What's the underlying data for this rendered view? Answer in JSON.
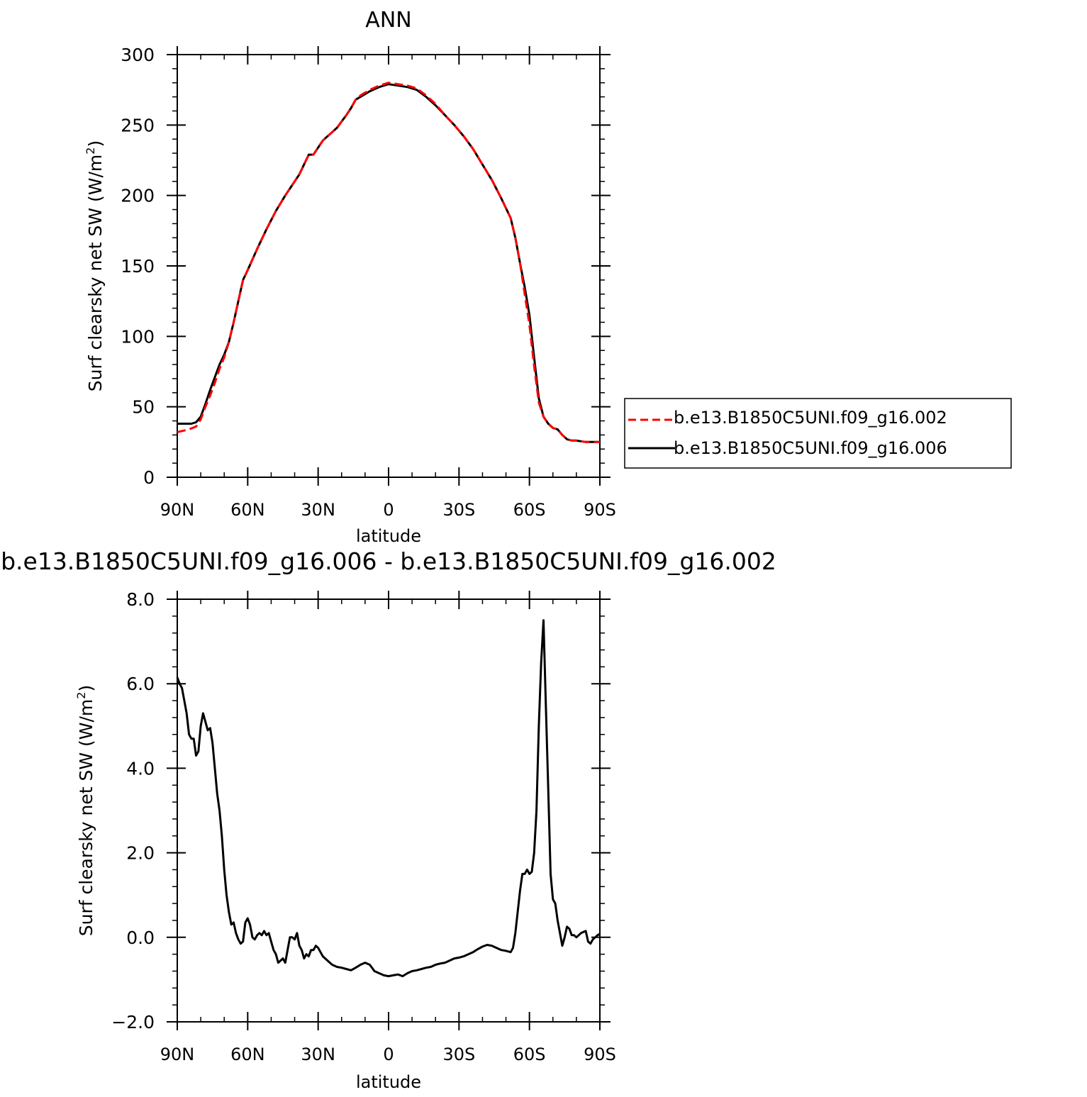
{
  "chart_data": [
    {
      "type": "line",
      "title": "ANN",
      "xlabel": "latitude",
      "ylabel_main": "Surf clearsky net SW (W/m",
      "ylabel_sup": "2",
      "ylabel_close": ")",
      "x_range": [
        90,
        -90
      ],
      "ylim": [
        0,
        300
      ],
      "x_ticks": [
        90,
        60,
        30,
        0,
        -30,
        -60,
        -90
      ],
      "x_tick_labels": [
        "90N",
        "60N",
        "30N",
        "0",
        "30S",
        "60S",
        "90S"
      ],
      "y_ticks": [
        0,
        50,
        100,
        150,
        200,
        250,
        300
      ],
      "y_tick_labels": [
        "0",
        "50",
        "100",
        "150",
        "200",
        "250",
        "300"
      ],
      "legend": "right",
      "series": [
        {
          "name": "b.e13.B1850C5UNI.f09_g16.002",
          "color": "#ff0000",
          "style": "dashed",
          "x": [
            90,
            85,
            82,
            80,
            78,
            76,
            74,
            72,
            70,
            68,
            66,
            64,
            62,
            60,
            56,
            52,
            48,
            44,
            40,
            38,
            36,
            34,
            32,
            30,
            28,
            26,
            22,
            18,
            16,
            14,
            12,
            8,
            4,
            0,
            -4,
            -8,
            -12,
            -16,
            -20,
            -24,
            -28,
            -32,
            -36,
            -40,
            -44,
            -48,
            -52,
            -54,
            -56,
            -58,
            -60,
            -62,
            -64,
            -66,
            -68,
            -70,
            -72,
            -74,
            -76,
            -78,
            -80,
            -84,
            -88,
            -90
          ],
          "values": [
            32,
            34,
            36,
            41,
            50,
            58,
            67,
            77,
            85,
            96,
            110,
            125,
            140,
            147,
            162,
            176,
            189,
            200,
            210,
            215,
            222,
            229,
            229,
            234,
            239,
            242,
            248,
            257,
            262,
            268,
            271,
            275,
            278,
            280,
            279,
            278,
            276,
            271,
            265,
            257,
            250,
            242,
            233,
            222,
            211,
            198,
            184,
            170,
            152,
            130,
            108,
            79,
            53,
            43,
            38,
            35,
            34,
            30,
            27,
            26,
            26,
            25,
            25,
            25
          ]
        },
        {
          "name": "b.e13.B1850C5UNI.f09_g16.006",
          "color": "#000000",
          "style": "solid",
          "x": [
            90,
            87,
            84,
            82,
            80,
            78,
            76,
            74,
            72,
            70,
            68,
            66,
            64,
            62,
            60,
            56,
            52,
            48,
            44,
            40,
            38,
            36,
            34,
            32,
            30,
            28,
            26,
            22,
            18,
            16,
            14,
            12,
            8,
            4,
            0,
            -4,
            -8,
            -12,
            -16,
            -20,
            -24,
            -28,
            -32,
            -36,
            -40,
            -44,
            -48,
            -52,
            -54,
            -56,
            -58,
            -60,
            -62,
            -64,
            -66,
            -68,
            -70,
            -72,
            -74,
            -76,
            -78,
            -80,
            -84,
            -88,
            -90
          ],
          "values": [
            38,
            38,
            38,
            39,
            43,
            52,
            62,
            71,
            80,
            87,
            96,
            110,
            125,
            140,
            147,
            162,
            176,
            189,
            200,
            210,
            215,
            222,
            229,
            229,
            234,
            239,
            242,
            248,
            257,
            262,
            268,
            270,
            274,
            277,
            279,
            278,
            277,
            275,
            270,
            264,
            257,
            250,
            242,
            233,
            222,
            211,
            198,
            184,
            170,
            152,
            135,
            115,
            85,
            56,
            43,
            38,
            35,
            34,
            30,
            27,
            26,
            26,
            25,
            25,
            25
          ]
        }
      ]
    },
    {
      "type": "line",
      "title": "b.e13.B1850C5UNI.f09_g16.006 - b.e13.B1850C5UNI.f09_g16.002",
      "xlabel": "latitude",
      "ylabel_main": "Surf clearsky net SW (W/m",
      "ylabel_sup": "2",
      "ylabel_close": ")",
      "x_range": [
        90,
        -90
      ],
      "ylim": [
        -2.0,
        8.0
      ],
      "x_ticks": [
        90,
        60,
        30,
        0,
        -30,
        -60,
        -90
      ],
      "x_tick_labels": [
        "90N",
        "60N",
        "30N",
        "0",
        "30S",
        "60S",
        "90S"
      ],
      "y_ticks": [
        -2,
        0,
        2,
        4,
        6,
        8
      ],
      "y_tick_labels": [
        "−2.0",
        "0.0",
        "2.0",
        "4.0",
        "6.0",
        "8.0"
      ],
      "series": [
        {
          "color": "#000000",
          "style": "solid",
          "x": [
            90,
            89,
            88,
            87,
            86,
            85,
            84,
            83,
            82,
            81,
            80,
            79,
            78,
            77,
            76,
            75,
            74,
            73,
            72,
            71,
            70,
            69,
            68,
            67,
            66,
            65,
            64,
            63,
            62,
            61,
            60,
            59,
            58,
            57,
            56,
            55,
            54,
            53,
            52,
            51,
            50,
            49,
            48,
            47,
            46,
            45,
            44,
            43,
            42,
            41,
            40,
            39,
            38,
            37,
            36,
            35,
            34,
            33,
            32,
            31,
            30,
            29,
            28,
            27,
            26,
            25,
            24,
            22,
            20,
            18,
            16,
            14,
            12,
            10,
            8,
            6,
            4,
            2,
            0,
            -2,
            -4,
            -6,
            -8,
            -10,
            -12,
            -14,
            -16,
            -18,
            -20,
            -22,
            -24,
            -26,
            -28,
            -30,
            -32,
            -34,
            -36,
            -38,
            -40,
            -42,
            -44,
            -46,
            -48,
            -50,
            -52,
            -53,
            -54,
            -55,
            -56,
            -57,
            -58,
            -59,
            -60,
            -61,
            -62,
            -63,
            -64,
            -65,
            -66,
            -67,
            -68,
            -69,
            -70,
            -71,
            -72,
            -73,
            -74,
            -75,
            -76,
            -77,
            -78,
            -79,
            -80,
            -82,
            -84,
            -85,
            -86,
            -87,
            -88,
            -89,
            -90
          ],
          "values": [
            6.15,
            6.0,
            5.9,
            5.6,
            5.3,
            4.8,
            4.7,
            4.7,
            4.3,
            4.4,
            5.0,
            5.3,
            5.1,
            4.9,
            4.95,
            4.6,
            4.0,
            3.4,
            3.0,
            2.4,
            1.6,
            1.0,
            0.6,
            0.3,
            0.35,
            0.1,
            -0.05,
            -0.15,
            -0.1,
            0.35,
            0.45,
            0.3,
            0.0,
            -0.05,
            0.05,
            0.1,
            0.05,
            0.15,
            0.05,
            0.1,
            -0.1,
            -0.3,
            -0.4,
            -0.6,
            -0.55,
            -0.5,
            -0.6,
            -0.3,
            0.0,
            0.0,
            -0.05,
            0.1,
            -0.2,
            -0.3,
            -0.5,
            -0.4,
            -0.45,
            -0.3,
            -0.3,
            -0.2,
            -0.25,
            -0.35,
            -0.45,
            -0.5,
            -0.55,
            -0.6,
            -0.65,
            -0.7,
            -0.72,
            -0.75,
            -0.78,
            -0.72,
            -0.65,
            -0.6,
            -0.65,
            -0.8,
            -0.85,
            -0.9,
            -0.92,
            -0.9,
            -0.88,
            -0.92,
            -0.85,
            -0.8,
            -0.78,
            -0.75,
            -0.72,
            -0.7,
            -0.65,
            -0.62,
            -0.6,
            -0.55,
            -0.5,
            -0.48,
            -0.45,
            -0.4,
            -0.35,
            -0.28,
            -0.22,
            -0.18,
            -0.2,
            -0.25,
            -0.3,
            -0.32,
            -0.35,
            -0.25,
            0.1,
            0.6,
            1.1,
            1.5,
            1.5,
            1.6,
            1.5,
            1.55,
            2.0,
            3.0,
            5.0,
            6.5,
            7.5,
            5.5,
            3.5,
            1.5,
            0.9,
            0.8,
            0.4,
            0.1,
            -0.2,
            0.0,
            0.25,
            0.2,
            0.05,
            0.05,
            0.0,
            0.1,
            0.15,
            -0.1,
            -0.15,
            -0.05,
            0.0,
            0.05,
            0.08
          ]
        }
      ]
    }
  ]
}
